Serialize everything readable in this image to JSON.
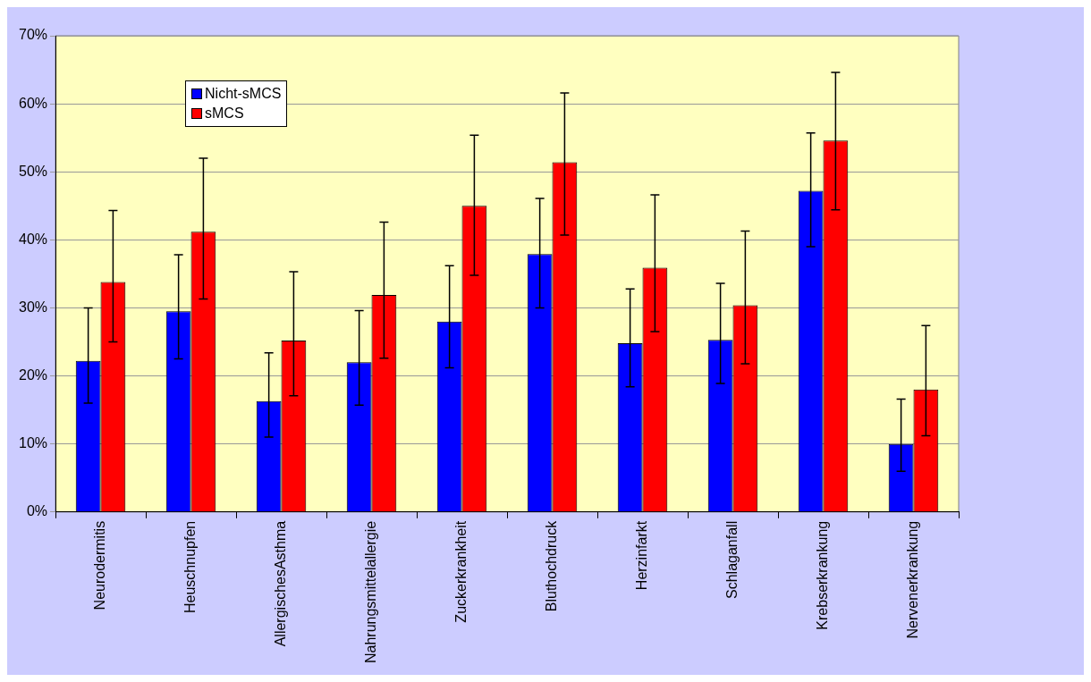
{
  "chart_data": {
    "type": "bar",
    "categories": [
      "Neurodermitis",
      "Heuschnupfen",
      "AllergischesAsthma",
      "Nahrungsmittelallergie",
      "Zuckerkrankheit",
      "Bluthochdruck",
      "Herzinfarkt",
      "Schlaganfall",
      "Krebserkrankung",
      "Nervenerkrankung"
    ],
    "series": [
      {
        "name": "Nicht-sMCS",
        "color": "#0000ff",
        "values": [
          22.2,
          29.5,
          16.3,
          22,
          28,
          37.9,
          24.8,
          25.3,
          47.2,
          10
        ],
        "errors": [
          [
            16,
            30
          ],
          [
            22.5,
            37.8
          ],
          [
            11,
            23.4
          ],
          [
            15.7,
            29.6
          ],
          [
            21.2,
            36.2
          ],
          [
            30,
            46.1
          ],
          [
            18.4,
            32.8
          ],
          [
            18.9,
            33.6
          ],
          [
            39,
            55.7
          ],
          [
            6,
            16.6
          ]
        ]
      },
      {
        "name": "sMCS",
        "color": "#ff0000",
        "values": [
          33.8,
          41.2,
          25.2,
          31.9,
          45,
          51.4,
          35.9,
          30.4,
          54.6,
          18
        ],
        "errors": [
          [
            25,
            44.3
          ],
          [
            31.3,
            52
          ],
          [
            17.1,
            35.3
          ],
          [
            22.6,
            42.6
          ],
          [
            34.8,
            55.4
          ],
          [
            40.7,
            61.6
          ],
          [
            26.5,
            46.6
          ],
          [
            21.8,
            41.3
          ],
          [
            44.4,
            64.6
          ],
          [
            11.2,
            27.4
          ]
        ]
      }
    ],
    "ylim": [
      0,
      70
    ],
    "yticks": [
      {
        "value": 0,
        "label": "0%"
      },
      {
        "value": 10,
        "label": "10%"
      },
      {
        "value": 20,
        "label": "20%"
      },
      {
        "value": 30,
        "label": "30%"
      },
      {
        "value": 40,
        "label": "40%"
      },
      {
        "value": 50,
        "label": "50%"
      },
      {
        "value": 60,
        "label": "60%"
      },
      {
        "value": 70,
        "label": "70%"
      }
    ],
    "grid": "y",
    "legend": "top left"
  }
}
